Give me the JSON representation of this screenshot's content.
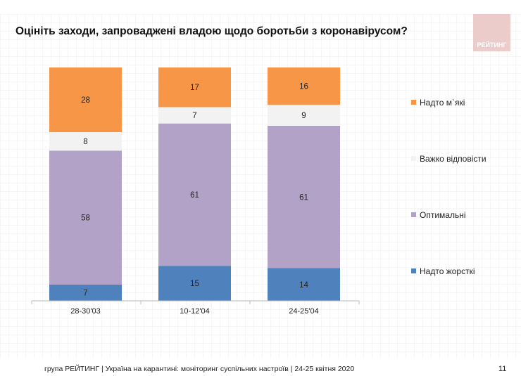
{
  "title": "Оцініть заходи, запроваджені владою щодо боротьби з коронавірусом?",
  "logo_text": "РЕЙТИНГ",
  "footer": "група РЕЙТИНГ | Україна на карантині: моніторинг суспільних настроїв  | 24-25 квітня  2020",
  "page_number": "11",
  "chart_data": {
    "type": "bar",
    "stacked": true,
    "categories": [
      "28-30'03",
      "10-12'04",
      "24-25'04"
    ],
    "series": [
      {
        "name": "Надто жорсткі",
        "color": "#4f81bd",
        "values": [
          7,
          15,
          14
        ]
      },
      {
        "name": "Оптимальні",
        "color": "#b3a2c7",
        "values": [
          58,
          61,
          61
        ]
      },
      {
        "name": "Важко відповісти",
        "color": "#f2f2f2",
        "values": [
          8,
          7,
          9
        ]
      },
      {
        "name": "Надто м`які",
        "color": "#f79646",
        "values": [
          28,
          17,
          16
        ]
      }
    ],
    "legend": "right",
    "grid": false
  }
}
